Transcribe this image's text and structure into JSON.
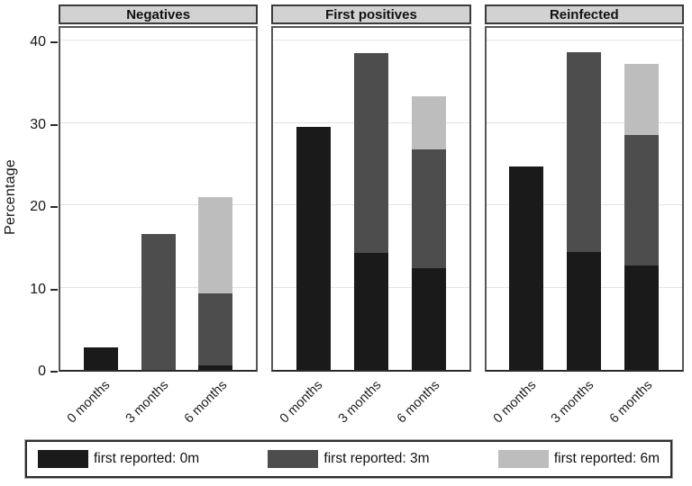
{
  "colors": {
    "bar_black": "#1a1a1a",
    "bar_dark_gray": "#4d4d4d",
    "bar_light_gray": "#bdbdbd",
    "panel_header_bg": "#d2d2d2",
    "gridline": "#e3e3e3",
    "panel_border": "#565656",
    "axis": "#2b2b2b"
  },
  "chart_data": {
    "type": "bar",
    "stacked": true,
    "ylabel": "Percentage",
    "ylim": [
      0,
      42
    ],
    "yticks": [
      0,
      10,
      20,
      30,
      40
    ],
    "grid": "horizontal",
    "legend_position": "bottom",
    "categories": [
      "0 months",
      "3 months",
      "6 months"
    ],
    "series_names": [
      "first reported: 0m",
      "first reported: 3m",
      "first reported: 6m"
    ],
    "series_colors": [
      "#1a1a1a",
      "#4d4d4d",
      "#bdbdbd"
    ],
    "panels": [
      {
        "title": "Negatives",
        "series": [
          {
            "name": "first reported: 0m",
            "values": [
              2.7,
              0,
              0.6
            ]
          },
          {
            "name": "first reported: 3m",
            "values": [
              0,
              16.5,
              8.7
            ]
          },
          {
            "name": "first reported: 6m",
            "values": [
              0,
              0,
              11.7
            ]
          }
        ]
      },
      {
        "title": "First positives",
        "series": [
          {
            "name": "first reported: 0m",
            "values": [
              29.5,
              14.2,
              12.4
            ]
          },
          {
            "name": "first reported: 3m",
            "values": [
              0,
              24.3,
              14.4
            ]
          },
          {
            "name": "first reported: 6m",
            "values": [
              0,
              0,
              6.4
            ]
          }
        ]
      },
      {
        "title": "Reinfected",
        "series": [
          {
            "name": "first reported: 0m",
            "values": [
              24.7,
              14.3,
              12.7
            ]
          },
          {
            "name": "first reported: 3m",
            "values": [
              0,
              24.3,
              15.8
            ]
          },
          {
            "name": "first reported: 6m",
            "values": [
              0,
              0,
              8.7
            ]
          }
        ]
      }
    ],
    "legend": [
      "first reported: 0m",
      "first reported: 3m",
      "first reported: 6m"
    ]
  }
}
